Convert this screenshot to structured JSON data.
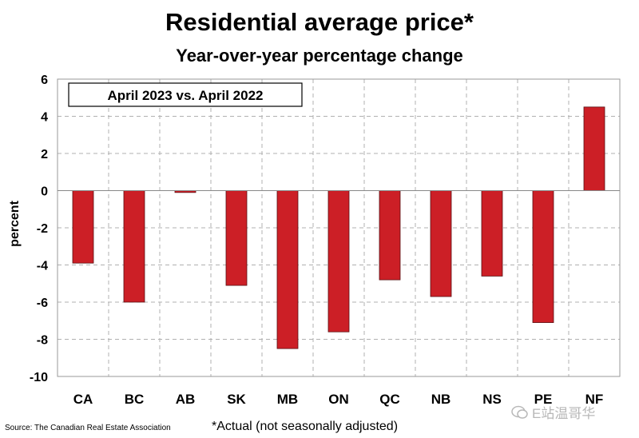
{
  "title": "Residential average price*",
  "subtitle": "Year-over-year percentage change",
  "source": "Source: The Canadian Real Estate Association",
  "footnote": "*Actual (not seasonally adjusted)",
  "watermark": "E站温哥华",
  "colors": {
    "bar": "#cc1f26",
    "grid": "#b0b0b0"
  },
  "chart_data": {
    "type": "bar",
    "title": "Residential average price*",
    "subtitle": "Year-over-year percentage change",
    "xlabel": "",
    "ylabel": "percent",
    "ylim": [
      -10,
      6
    ],
    "yticks": [
      6,
      4,
      2,
      0,
      -2,
      -4,
      -6,
      -8,
      -10
    ],
    "grid": true,
    "legend_box": "April 2023 vs. April 2022",
    "categories": [
      "CA",
      "BC",
      "AB",
      "SK",
      "MB",
      "ON",
      "QC",
      "NB",
      "NS",
      "PE",
      "NF"
    ],
    "values": [
      -3.9,
      -6.0,
      -0.1,
      -5.1,
      -8.5,
      -7.6,
      -4.8,
      -5.7,
      -4.6,
      -7.1,
      4.5
    ]
  }
}
